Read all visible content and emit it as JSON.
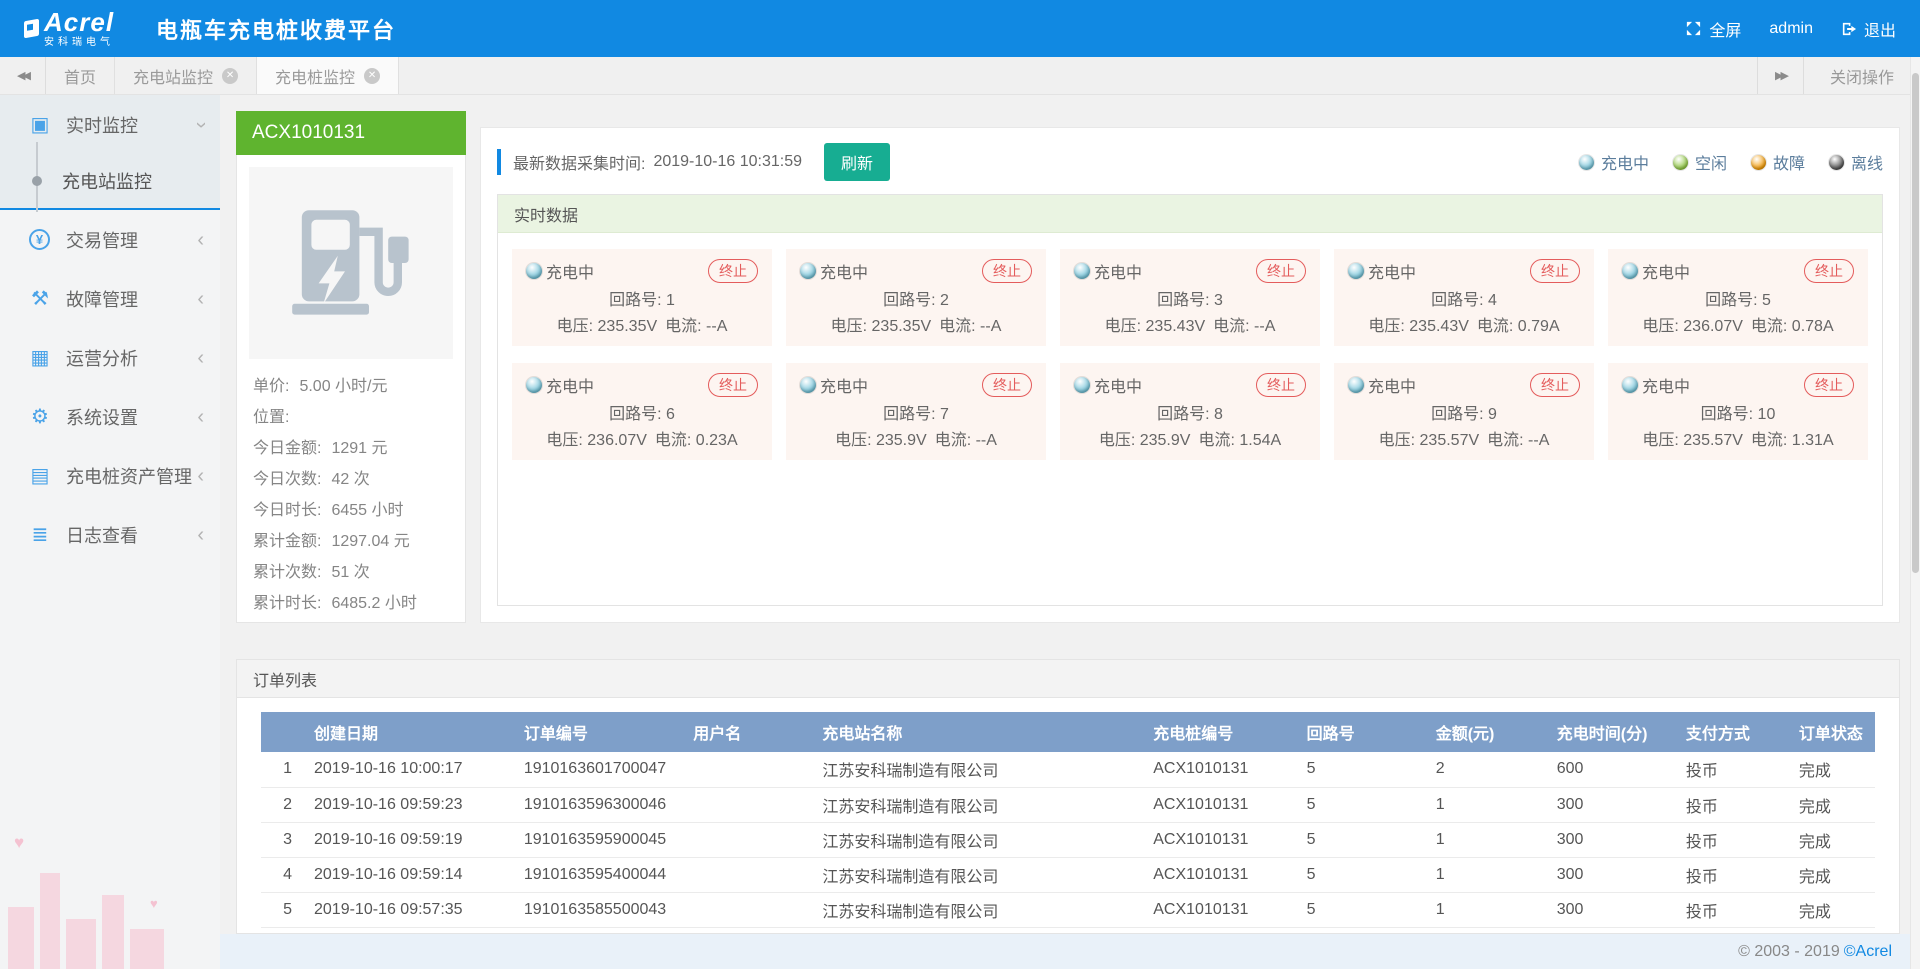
{
  "colors": {
    "header_bg": "#1189e2",
    "accent_blue": "#1189e2",
    "station_green": "#5fb42f",
    "refresh_teal": "#17ad92",
    "stop_red": "#e45c5c",
    "table_header_bg": "#7e9fc9"
  },
  "header": {
    "logo_text": "Acrel",
    "logo_subtext": "安科瑞电气",
    "app_title": "电瓶车充电桩收费平台",
    "fullscreen_label": "全屏",
    "username": "admin",
    "logout_label": "退出"
  },
  "tabbar": {
    "tabs": [
      {
        "label": "首页",
        "closable": false,
        "active": false
      },
      {
        "label": "充电站监控",
        "closable": true,
        "active": false
      },
      {
        "label": "充电桩监控",
        "closable": true,
        "active": true
      }
    ],
    "close_menu_label": "关闭操作"
  },
  "sidebar": {
    "items": [
      {
        "label": "实时监控",
        "icon": "monitor-icon",
        "expanded": true,
        "children": [
          {
            "label": "充电站监控",
            "active": true
          }
        ]
      },
      {
        "label": "交易管理",
        "icon": "transaction-icon",
        "expanded": false
      },
      {
        "label": "故障管理",
        "icon": "tools-icon",
        "expanded": false
      },
      {
        "label": "运营分析",
        "icon": "calendar-icon",
        "expanded": false
      },
      {
        "label": "系统设置",
        "icon": "gear-icon",
        "expanded": false
      },
      {
        "label": "充电桩资产管理",
        "icon": "charging-pile-icon",
        "expanded": false
      },
      {
        "label": "日志查看",
        "icon": "log-icon",
        "expanded": false
      }
    ]
  },
  "station": {
    "id": "ACX1010131",
    "stats": [
      {
        "label": "单价:",
        "value": "5.00 小时/元"
      },
      {
        "label": "位置:",
        "value": ""
      },
      {
        "label": "今日金额:",
        "value": "1291 元"
      },
      {
        "label": "今日次数:",
        "value": "42 次"
      },
      {
        "label": "今日时长:",
        "value": "6455 小时"
      },
      {
        "label": "累计金额:",
        "value": "1297.04 元"
      },
      {
        "label": "累计次数:",
        "value": "51 次"
      },
      {
        "label": "累计时长:",
        "value": "6485.2 小时"
      }
    ]
  },
  "monitor": {
    "latest_time_label": "最新数据采集时间:",
    "latest_time": "2019-10-16 10:31:59",
    "refresh_label": "刷新",
    "legend": [
      {
        "label": "充电中",
        "color": "#72c2d8"
      },
      {
        "label": "空闲",
        "color": "#8ec73f"
      },
      {
        "label": "故障",
        "color": "#f49a00"
      },
      {
        "label": "离线",
        "color": "#4f4f4f"
      }
    ],
    "section_title": "实时数据",
    "status_label": "充电中",
    "stop_label": "终止",
    "loop_label": "回路号:",
    "voltage_label": "电压:",
    "current_label": "电流:",
    "cards": [
      {
        "loop": "1",
        "voltage": "235.35V",
        "current": "--A"
      },
      {
        "loop": "2",
        "voltage": "235.35V",
        "current": "--A"
      },
      {
        "loop": "3",
        "voltage": "235.43V",
        "current": "--A"
      },
      {
        "loop": "4",
        "voltage": "235.43V",
        "current": "0.79A"
      },
      {
        "loop": "5",
        "voltage": "236.07V",
        "current": "0.78A"
      },
      {
        "loop": "6",
        "voltage": "236.07V",
        "current": "0.23A"
      },
      {
        "loop": "7",
        "voltage": "235.9V",
        "current": "--A"
      },
      {
        "loop": "8",
        "voltage": "235.9V",
        "current": "1.54A"
      },
      {
        "loop": "9",
        "voltage": "235.57V",
        "current": "--A"
      },
      {
        "loop": "10",
        "voltage": "235.57V",
        "current": "1.31A"
      }
    ]
  },
  "orders": {
    "panel_title": "订单列表",
    "columns": [
      "创建日期",
      "订单编号",
      "用户名",
      "充电站名称",
      "充电桩编号",
      "回路号",
      "金额(元)",
      "充电时间(分)",
      "支付方式",
      "订单状态"
    ],
    "rows": [
      {
        "index": "1",
        "cells": [
          "2019-10-16 10:00:17",
          "1910163601700047",
          "",
          "江苏安科瑞制造有限公司",
          "ACX1010131",
          "5",
          "2",
          "600",
          "投币",
          "完成"
        ]
      },
      {
        "index": "2",
        "cells": [
          "2019-10-16 09:59:23",
          "1910163596300046",
          "",
          "江苏安科瑞制造有限公司",
          "ACX1010131",
          "5",
          "1",
          "300",
          "投币",
          "完成"
        ]
      },
      {
        "index": "3",
        "cells": [
          "2019-10-16 09:59:19",
          "1910163595900045",
          "",
          "江苏安科瑞制造有限公司",
          "ACX1010131",
          "5",
          "1",
          "300",
          "投币",
          "完成"
        ]
      },
      {
        "index": "4",
        "cells": [
          "2019-10-16 09:59:14",
          "1910163595400044",
          "",
          "江苏安科瑞制造有限公司",
          "ACX1010131",
          "5",
          "1",
          "300",
          "投币",
          "完成"
        ]
      },
      {
        "index": "5",
        "cells": [
          "2019-10-16 09:57:35",
          "1910163585500043",
          "",
          "江苏安科瑞制造有限公司",
          "ACX1010131",
          "5",
          "1",
          "300",
          "投币",
          "完成"
        ]
      }
    ]
  },
  "footer": {
    "copyright": "© 2003 - 2019",
    "brand": "©Acrel"
  }
}
